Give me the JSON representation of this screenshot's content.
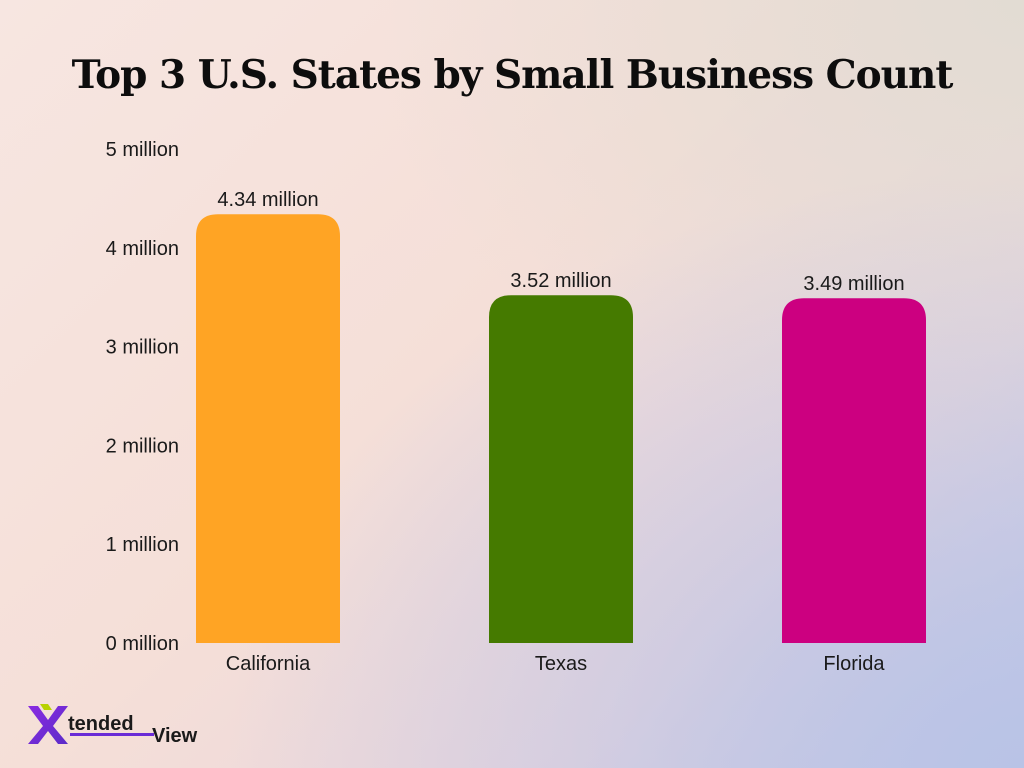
{
  "title": "Top 3 U.S. States by Small Business Count",
  "colors": {
    "California": "#ffa424",
    "Texas": "#457a00",
    "Florida": "#cc0080"
  },
  "logo": {
    "text_main": "tended",
    "text_secondary": "View",
    "mark": "X"
  },
  "chart_data": {
    "type": "bar",
    "title": "Top 3 U.S. States by Small Business Count",
    "xlabel": "",
    "ylabel": "",
    "categories": [
      "California",
      "Texas",
      "Florida"
    ],
    "values": [
      4.34,
      3.52,
      3.49
    ],
    "unit": "million",
    "data_labels": [
      "4.34 million",
      "3.52 million",
      "3.49 million"
    ],
    "ylim": [
      0,
      5
    ],
    "y_ticks": [
      0,
      1,
      2,
      3,
      4,
      5
    ],
    "y_tick_labels": [
      "0 million",
      "1 million",
      "2 million",
      "3 million",
      "4 million",
      "5 million"
    ],
    "grid": false,
    "legend": "none"
  }
}
